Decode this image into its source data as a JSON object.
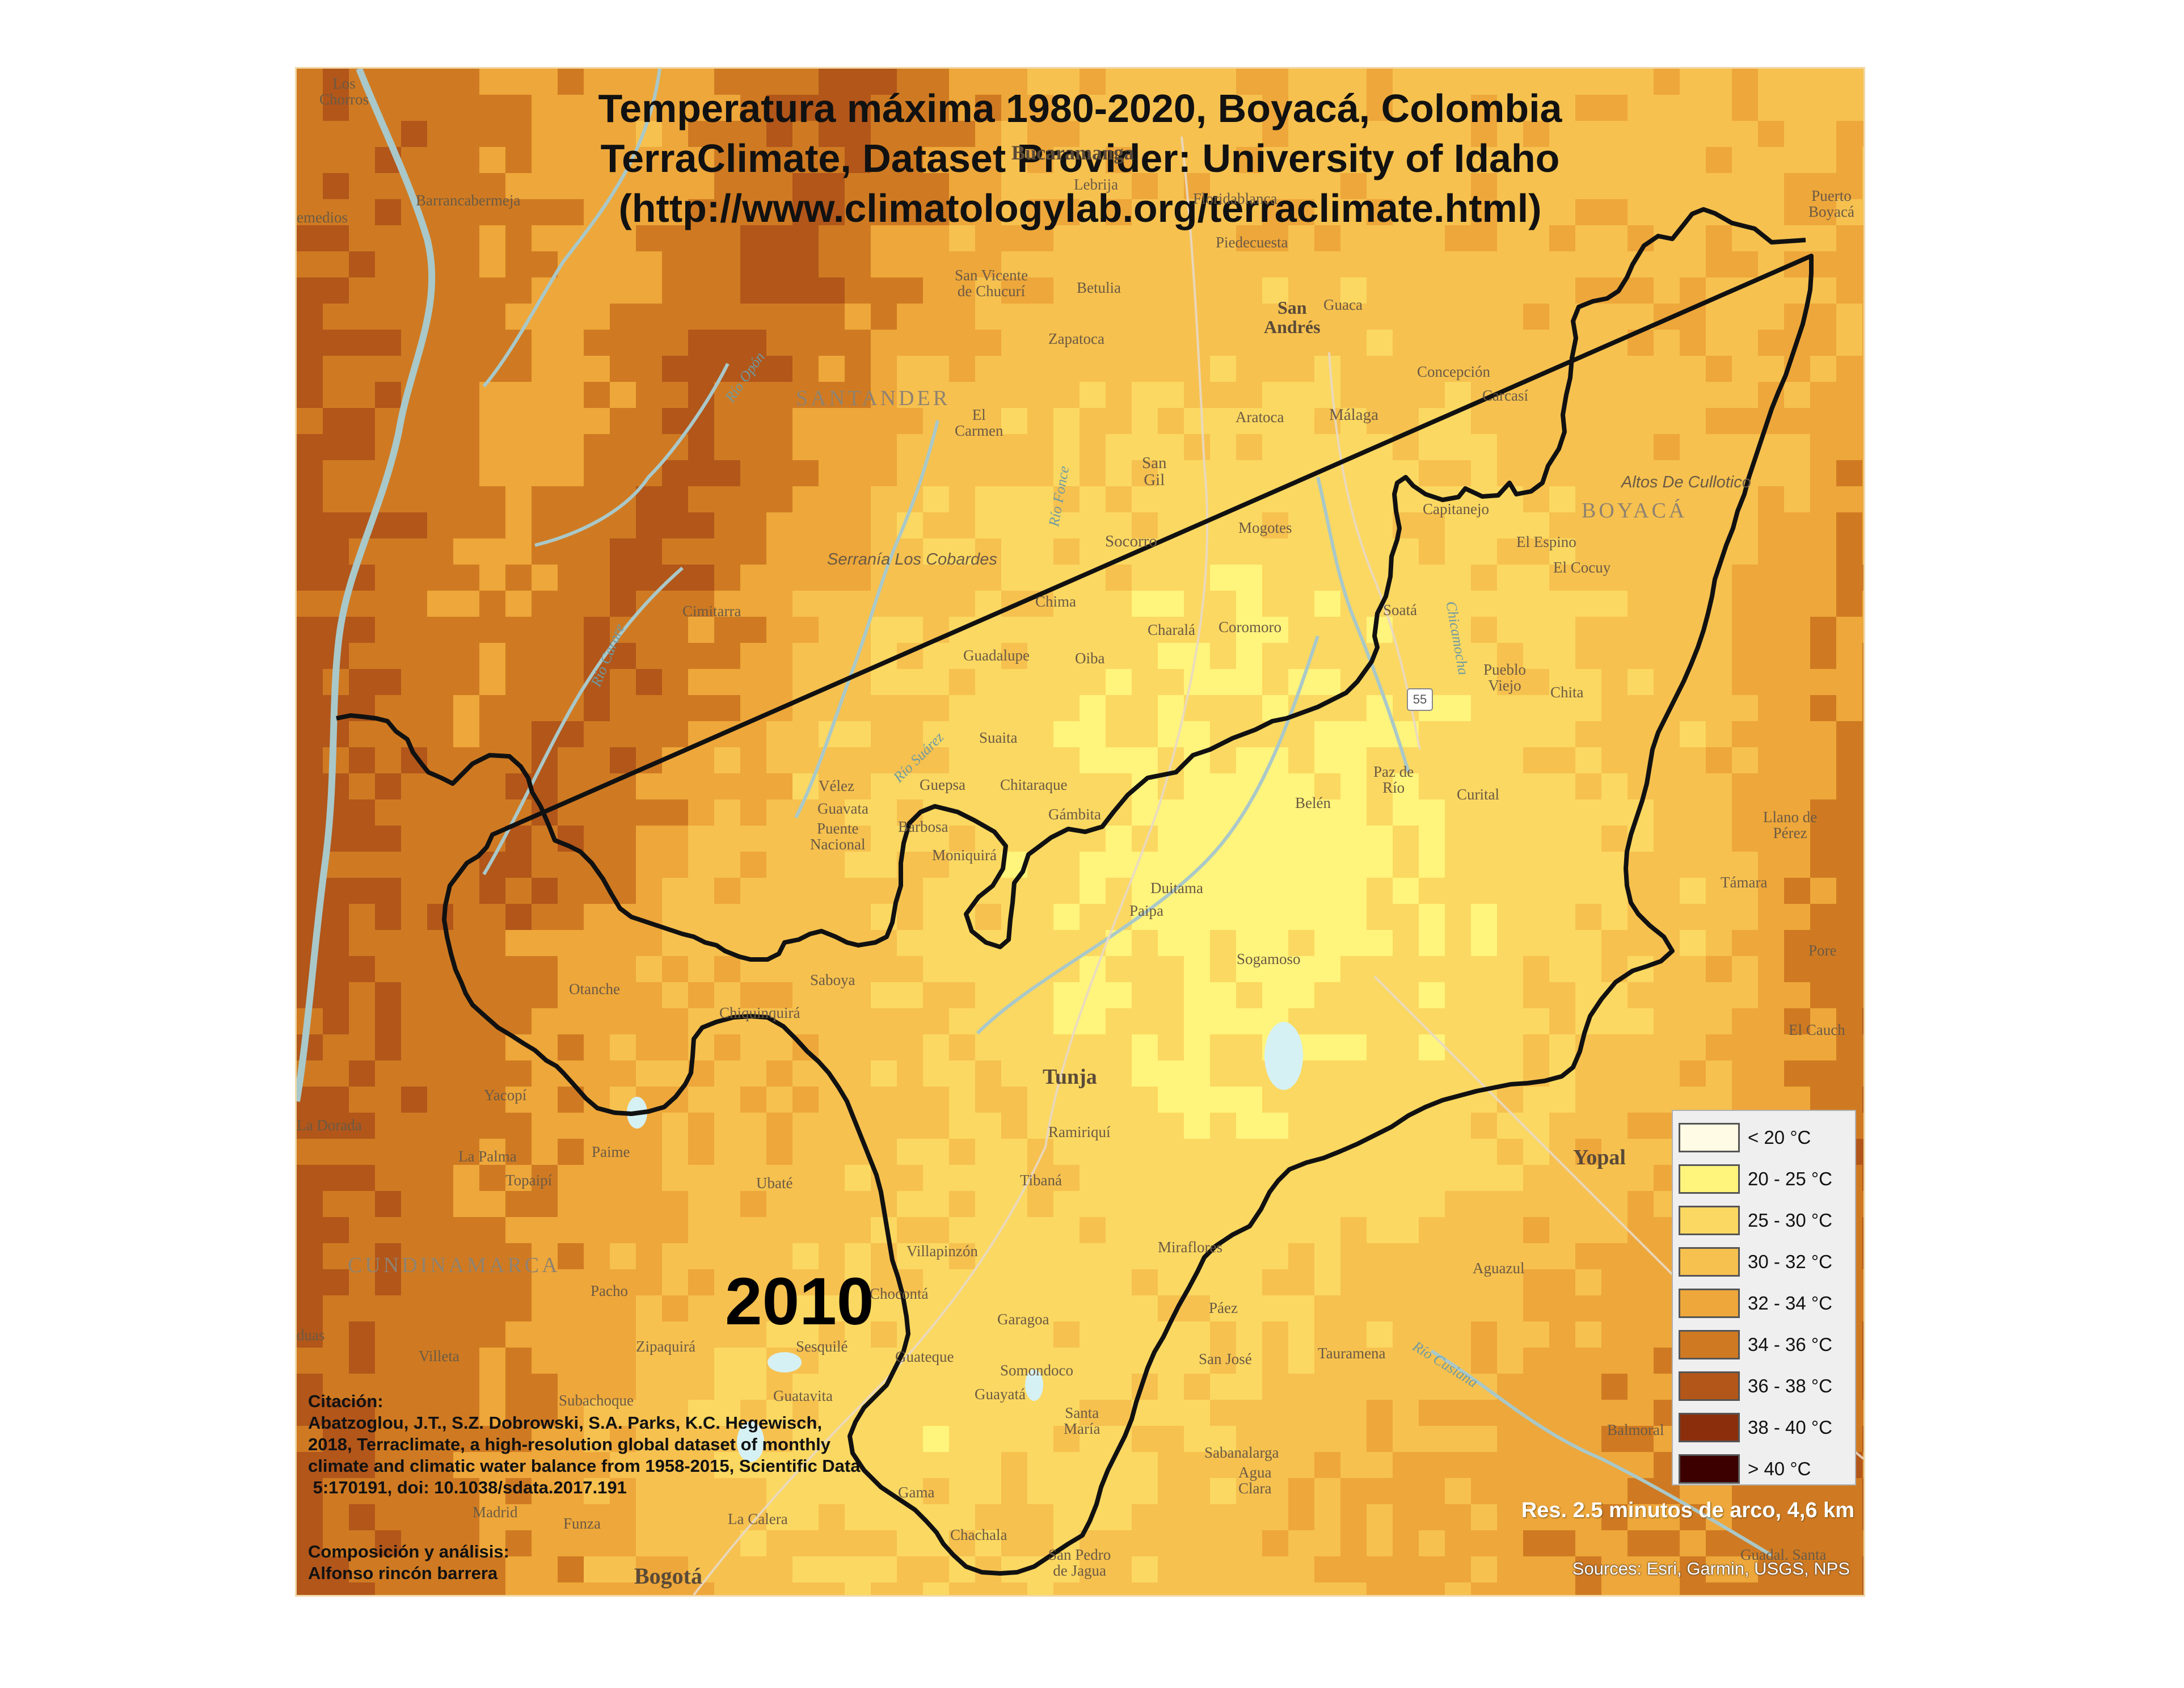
{
  "title": {
    "line1": "Temperatura máxima 1980-2020, Boyacá, Colombia",
    "line2": "TerraClimate, Dataset Provider: University of Idaho",
    "line3": "(http://www.climatologylab.org/terraclimate.html)"
  },
  "year": "2010",
  "citation": {
    "heading": "Citación:",
    "lines": [
      "Abatzoglou, J.T., S.Z. Dobrowski, S.A. Parks, K.C. Hegewisch,",
      "2018, Terraclimate, a high-resolution global dataset of monthly",
      "climate and climatic water balance from 1958-2015, Scientific Data",
      " 5:170191, doi: 10.1038/sdata.2017.191"
    ]
  },
  "credits": {
    "heading": "Composición y análisis:",
    "author": "Alfonso rincón barrera"
  },
  "resolution": "Res. 2.5 minutos de arco, 4,6 km",
  "sources": "Sources: Esri, Garmin, USGS, NPS",
  "legend": [
    {
      "label": "< 20 °C",
      "color": "#fffbe4"
    },
    {
      "label": "20 - 25 °C",
      "color": "#fff47c"
    },
    {
      "label": "25 - 30 °C",
      "color": "#fbd861"
    },
    {
      "label": "30 - 32 °C",
      "color": "#f6c14f"
    },
    {
      "label": "32 - 34 °C",
      "color": "#eea73a"
    },
    {
      "label": "34 - 36 °C",
      "color": "#cf7a22"
    },
    {
      "label": "36 - 38 °C",
      "color": "#b2561a"
    },
    {
      "label": "38 - 40 °C",
      "color": "#8a2e0c"
    },
    {
      "label": "> 40 °C",
      "color": "#3c0000"
    }
  ],
  "places": {
    "los_chorros": "Los\nChorros",
    "bucaramanga": "Bucaramanga",
    "lebrija": "Lebrija",
    "floridablanca": "Floridablanca",
    "piedecuesta": "Piedecuesta",
    "remedios": "emedios",
    "barrancabermeja": "Barrancabermeja",
    "san_vicente": "San Vicente\nde Chucurí",
    "betulia": "Betulia",
    "zapatoca": "Zapatoca",
    "san_andres": "San\nAndrés",
    "guaca": "Guaca",
    "santander": "SANTANDER",
    "el_carmen": "El\nCarmen",
    "aratoca": "Aratoca",
    "malaga": "Málaga",
    "concepcion": "Concepción",
    "carcasi": "Carcasí",
    "san_gil": "San\nGil",
    "altos_cullotico": "Altos De Cullotico",
    "boyaca": "BOYACÁ",
    "capitanejo": "Capitanejo",
    "puerto_boyaca": "Puerto\nBoyacá",
    "serrania": "Serranía Los Cobardes",
    "socorro": "Socorro",
    "mogotes": "Mogotes",
    "el_espino": "El Espino",
    "el_cocuy": "El Cocuy",
    "cimitarra": "Cimitarra",
    "chima": "Chima",
    "charala": "Charalá",
    "coromoro": "Coromoro",
    "soata": "Soatá",
    "guadalupe": "Guadalupe",
    "oiba": "Oiba",
    "pueblo_viejo": "Pueblo\nViejo",
    "chita": "Chita",
    "suaita": "Suaita",
    "velez": "Vélez",
    "guavata": "Guavata",
    "puente_nacional": "Puente\nNacional",
    "guepsa": "Guepsa",
    "chitaraque": "Chitaraque",
    "gambita": "Gámbita",
    "barbosa": "Barbosa",
    "moniquira": "Moniquirá",
    "belen": "Belén",
    "paz_de_rio": "Paz de\nRío",
    "curital": "Curital",
    "llano_de_perez": "Llano de\nPérez",
    "duitama": "Duitama",
    "paipa": "Paipa",
    "tamara": "Támara",
    "sogamoso": "Sogamoso",
    "pore": "Pore",
    "otanche": "Otanche",
    "saboya": "Saboya",
    "chiquinquira": "Chiquinquirá",
    "el_cauca": "El Cauch",
    "tunja": "Tunja",
    "yacopi": "Yacopí",
    "la_dorada": "La Dorada",
    "la_palma": "La Palma",
    "topaipi": "Topaipí",
    "paime": "Paime",
    "ramiriqui": "Ramiriquí",
    "ubate": "Ubaté",
    "tibana": "Tibaná",
    "yopal": "Yopal",
    "cundinamarca": "CUNDINAMARCA",
    "villapinzon": "Villapinzón",
    "miraflores": "Miraflores",
    "aguazul": "Aguazul",
    "pacho": "Pacho",
    "choconta": "Chocontá",
    "paez": "Páez",
    "garagoa": "Garagoa",
    "villeta": "Villeta",
    "zipaquira": "Zipaquirá",
    "sesquile": "Sesquilé",
    "guateque": "Guateque",
    "somondoco": "Somondoco",
    "san_jose": "San José",
    "tauramena": "Tauramena",
    "guayata": "Guayatá",
    "subachoque": "Subachoque",
    "guatavita": "Guatavita",
    "santa_maria": "Santa\nMaría",
    "balmoral": "Balmoral",
    "sabanalarga": "Sabanalarga",
    "agua_clara": "Agua\nClara",
    "gama": "Gama",
    "madrid": "Madrid",
    "funza": "Funza",
    "la_calera": "La Calera",
    "chachala": "Chachala",
    "san_pedro": "San Pedro\nde Jagua",
    "bogota": "Bogotá",
    "guadalupe_santa": "Guadal. Santa",
    "duas": "duas",
    "rio_opon": "Río Opón",
    "rio_carare": "Río Carare",
    "rio_suarez": "Río Suárez",
    "rio_chicamocha": "Chicamocha",
    "rio_cusiana": "Río Cusiana",
    "rio_fonce": "Río Fonce",
    "route_55": "55"
  }
}
